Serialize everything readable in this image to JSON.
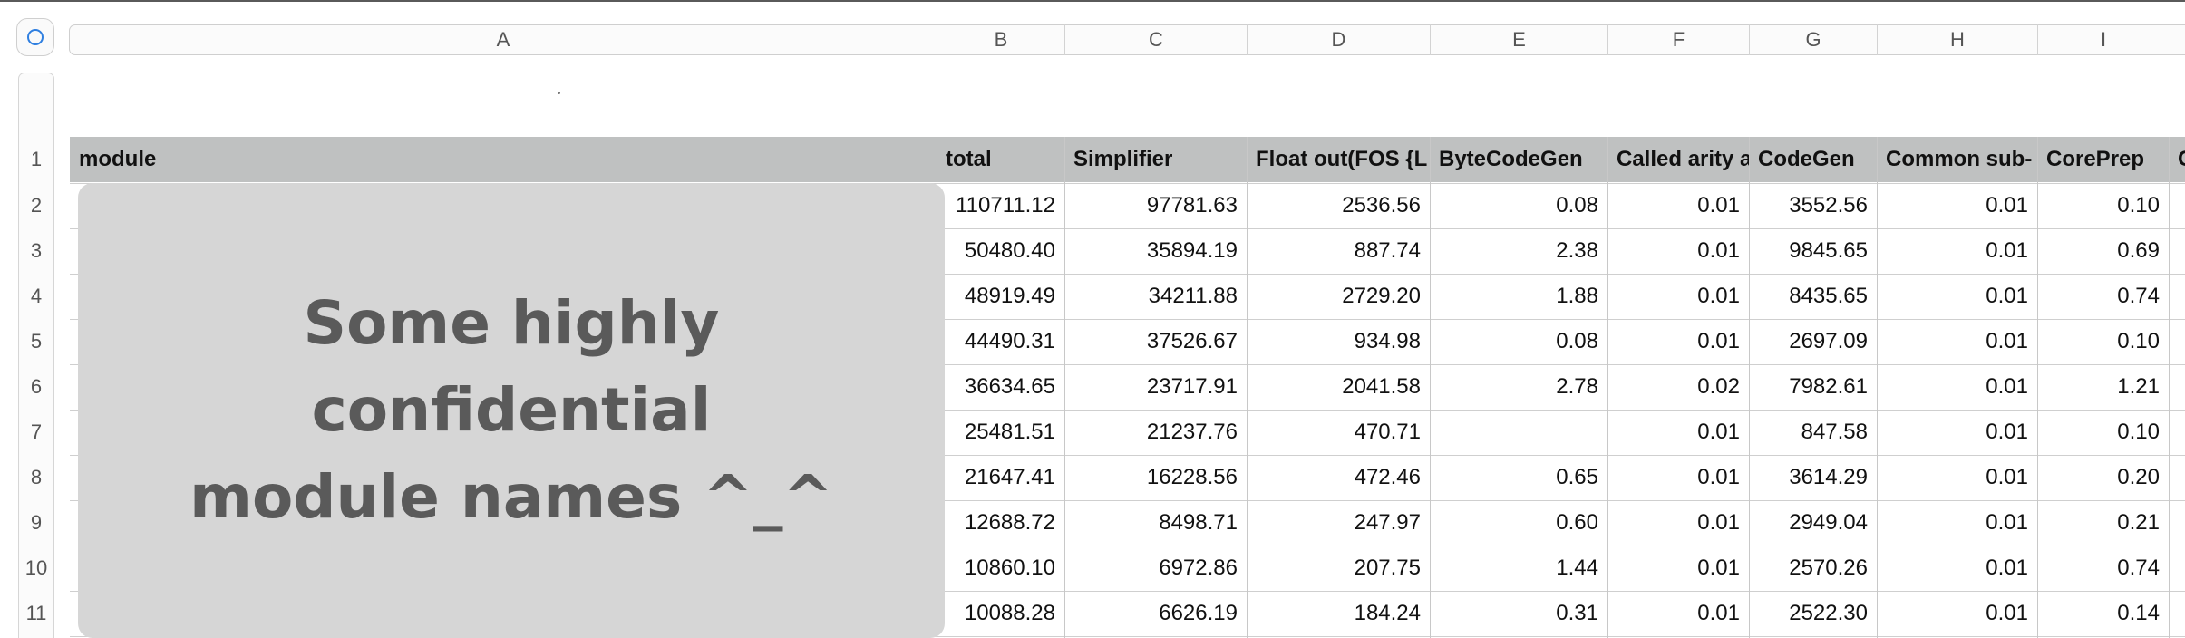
{
  "column_letters": [
    "A",
    "B",
    "C",
    "D",
    "E",
    "F",
    "G",
    "H",
    "I"
  ],
  "row_numbers": [
    "1",
    "2",
    "3",
    "4",
    "5",
    "6",
    "7",
    "8",
    "9",
    "10",
    "11"
  ],
  "headers": [
    "module",
    "total",
    "Simplifier",
    "Float out(FOS {L",
    "ByteCodeGen",
    "Called arity a",
    "CodeGen",
    "Common sub-",
    "CorePrep",
    "C"
  ],
  "rows": [
    [
      "110711.12",
      "97781.63",
      "2536.56",
      "0.08",
      "0.01",
      "3552.56",
      "0.01",
      "0.10"
    ],
    [
      "50480.40",
      "35894.19",
      "887.74",
      "2.38",
      "0.01",
      "9845.65",
      "0.01",
      "0.69"
    ],
    [
      "48919.49",
      "34211.88",
      "2729.20",
      "1.88",
      "0.01",
      "8435.65",
      "0.01",
      "0.74"
    ],
    [
      "44490.31",
      "37526.67",
      "934.98",
      "0.08",
      "0.01",
      "2697.09",
      "0.01",
      "0.10"
    ],
    [
      "36634.65",
      "23717.91",
      "2041.58",
      "2.78",
      "0.02",
      "7982.61",
      "0.01",
      "1.21"
    ],
    [
      "25481.51",
      "21237.76",
      "470.71",
      "",
      "0.01",
      "847.58",
      "0.01",
      "0.10"
    ],
    [
      "21647.41",
      "16228.56",
      "472.46",
      "0.65",
      "0.01",
      "3614.29",
      "0.01",
      "0.20"
    ],
    [
      "12688.72",
      "8498.71",
      "247.97",
      "0.60",
      "0.01",
      "2949.04",
      "0.01",
      "0.21"
    ],
    [
      "10860.10",
      "6972.86",
      "207.75",
      "1.44",
      "0.01",
      "2570.26",
      "0.01",
      "0.74"
    ],
    [
      "10088.28",
      "6626.19",
      "184.24",
      "0.31",
      "0.01",
      "2522.30",
      "0.01",
      "0.14"
    ]
  ],
  "redaction_text": "Some highly\nconfidential\nmodule names ^_^",
  "colors": {
    "header_band": "#bfc1c1",
    "redaction_box": "#d6d6d6",
    "select_all_ring": "#2f7fe0"
  }
}
